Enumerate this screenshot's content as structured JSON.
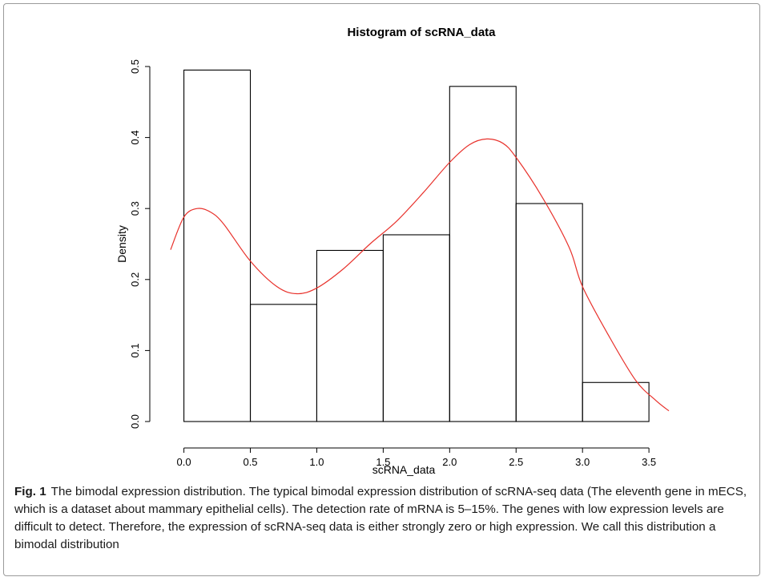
{
  "chart_data": {
    "type": "bar",
    "title": "Histogram of scRNA_data",
    "xlabel": "scRNA_data",
    "ylabel": "Density",
    "xlim": [
      -0.1,
      3.65
    ],
    "ylim": [
      0,
      0.5
    ],
    "x_ticks": [
      "0.0",
      "0.5",
      "1.0",
      "1.5",
      "2.0",
      "2.5",
      "3.0",
      "3.5"
    ],
    "y_ticks": [
      "0.0",
      "0.1",
      "0.2",
      "0.3",
      "0.4",
      "0.5"
    ],
    "bins": [
      {
        "x0": 0.0,
        "x1": 0.5,
        "density": 0.495
      },
      {
        "x0": 0.5,
        "x1": 1.0,
        "density": 0.165
      },
      {
        "x0": 1.0,
        "x1": 1.5,
        "density": 0.241
      },
      {
        "x0": 1.5,
        "x1": 2.0,
        "density": 0.263
      },
      {
        "x0": 2.0,
        "x1": 2.5,
        "density": 0.472
      },
      {
        "x0": 2.5,
        "x1": 3.0,
        "density": 0.307
      },
      {
        "x0": 3.0,
        "x1": 3.5,
        "density": 0.055
      }
    ],
    "density_curve": {
      "color": "#e8312b",
      "x": [
        -0.1,
        0.0,
        0.1,
        0.2,
        0.3,
        0.5,
        0.7,
        0.85,
        1.0,
        1.2,
        1.4,
        1.6,
        1.8,
        2.0,
        2.15,
        2.28,
        2.4,
        2.5,
        2.7,
        2.9,
        3.0,
        3.2,
        3.4,
        3.55,
        3.65
      ],
      "y": [
        0.242,
        0.288,
        0.3,
        0.295,
        0.278,
        0.226,
        0.19,
        0.18,
        0.188,
        0.215,
        0.25,
        0.282,
        0.322,
        0.365,
        0.39,
        0.398,
        0.392,
        0.372,
        0.315,
        0.245,
        0.19,
        0.12,
        0.058,
        0.03,
        0.015
      ]
    }
  },
  "caption": {
    "label": "Fig. 1",
    "title": "The bimodal expression distribution.",
    "text": "The typical bimodal expression distribution of scRNA-seq data (The eleventh gene in mECS, which is a dataset about mammary epithelial cells). The detection rate of mRNA is 5–15%. The genes with low expression levels are difficult to detect. Therefore, the expression of scRNA-seq data is either strongly zero or high expression. We call this distribution a bimodal distribution"
  },
  "colors": {
    "curve": "#e8312b",
    "bar_stroke": "#000000",
    "frame": "#9a9a9a"
  }
}
